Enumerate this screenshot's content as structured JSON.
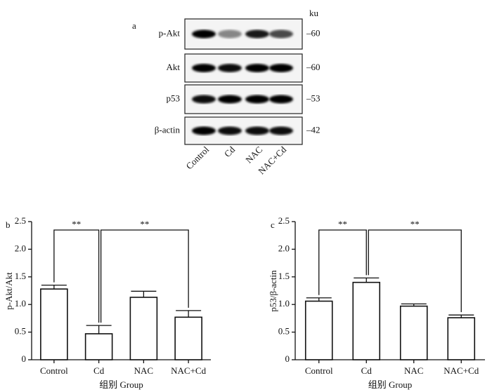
{
  "blot": {
    "panel_label": "a",
    "unit_label": "ku",
    "rows": [
      {
        "label": "p-Akt",
        "marker": "–60"
      },
      {
        "label": "Akt",
        "marker": "–60"
      },
      {
        "label": "p53",
        "marker": "–53"
      },
      {
        "label": "β-actin",
        "marker": "–42"
      }
    ],
    "lanes": [
      "Control",
      "Cd",
      "NAC",
      "NAC+Cd"
    ]
  },
  "chart_data": [
    {
      "type": "bar",
      "panel_label": "b",
      "y_label": "p-Akt/Akt",
      "x_label": "组别 Group",
      "categories": [
        "Control",
        "Cd",
        "NAC",
        "NAC+Cd"
      ],
      "values": [
        1.28,
        0.47,
        1.13,
        0.77
      ],
      "errors": [
        0.07,
        0.15,
        0.11,
        0.12
      ],
      "color": "#ffffff",
      "ylim": [
        0,
        2.5
      ],
      "yticks": [
        0,
        0.5,
        {
          "value": 1,
          "label": "1.0"
        },
        1.5,
        {
          "value": 2,
          "label": "2.0"
        },
        2.5
      ],
      "significance": [
        {
          "from": 0,
          "to": 1,
          "label": "**"
        },
        {
          "from": 1,
          "to": 3,
          "label": "**"
        }
      ]
    },
    {
      "type": "bar",
      "panel_label": "c",
      "y_label": "p53/β-actin",
      "x_label": "组别 Group",
      "categories": [
        "Control",
        "Cd",
        "NAC",
        "NAC+Cd"
      ],
      "values": [
        1.06,
        1.4,
        0.97,
        0.76
      ],
      "errors": [
        0.06,
        0.08,
        0.04,
        0.05
      ],
      "color": "#ffffff",
      "ylim": [
        0,
        2.5
      ],
      "yticks": [
        0,
        0.5,
        {
          "value": 1,
          "label": "1.0"
        },
        1.5,
        {
          "value": 2,
          "label": "2.0"
        },
        2.5
      ],
      "significance": [
        {
          "from": 0,
          "to": 1,
          "label": "**"
        },
        {
          "from": 1,
          "to": 3,
          "label": "**"
        }
      ]
    }
  ]
}
